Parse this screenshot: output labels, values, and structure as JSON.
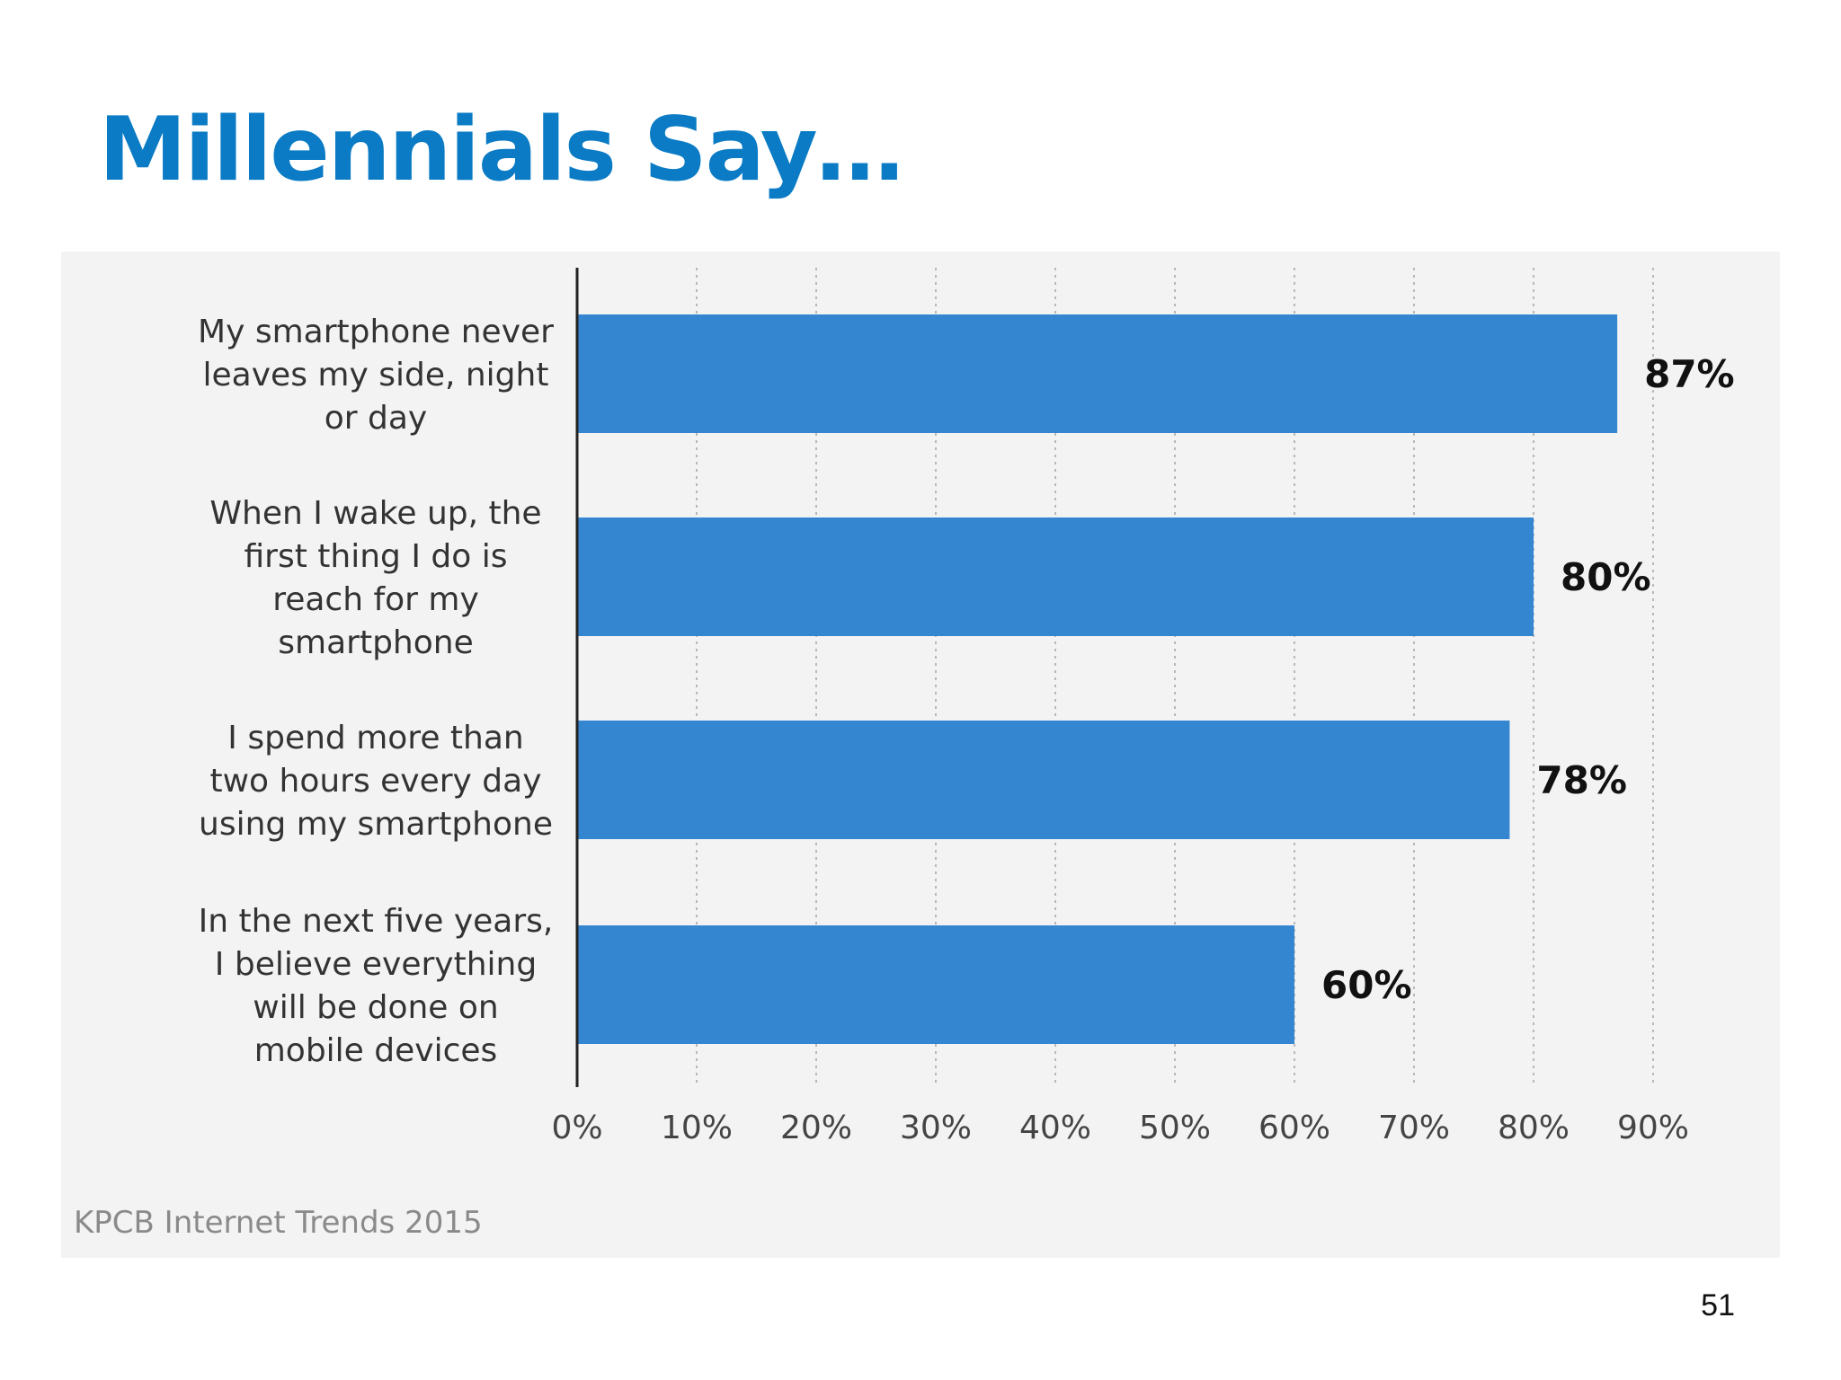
{
  "slide": {
    "title": "Millennials Say…",
    "title_color": "#0A7BC4",
    "page_number": "51"
  },
  "chart_data": {
    "type": "bar",
    "orientation": "horizontal",
    "categories": [
      [
        "My smartphone never",
        "leaves my side, night",
        "or day"
      ],
      [
        "When I wake up, the",
        "first thing I do is",
        "reach for my",
        "smartphone"
      ],
      [
        "I spend more than",
        "two hours every day",
        "using my smartphone"
      ],
      [
        "In the next five years,",
        "I believe everything",
        "will be done on",
        "mobile devices"
      ]
    ],
    "values": [
      87,
      80,
      78,
      60
    ],
    "value_labels": [
      "87%",
      "80%",
      "78%",
      "60%"
    ],
    "xlim": [
      0,
      90
    ],
    "x_ticks": [
      "0%",
      "10%",
      "20%",
      "30%",
      "40%",
      "50%",
      "60%",
      "70%",
      "80%",
      "90%"
    ],
    "grid": "vertical dashed",
    "bar_color": "#3586D1",
    "source": "KPCB Internet Trends 2015"
  }
}
